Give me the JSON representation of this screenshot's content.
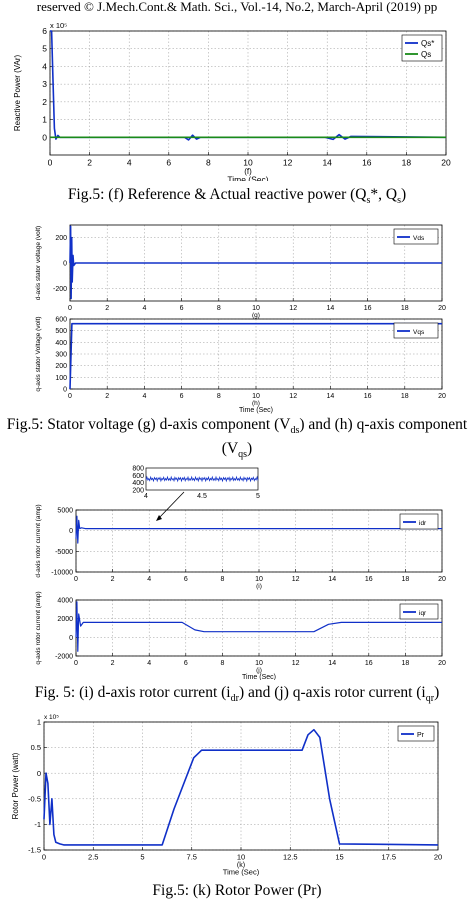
{
  "header": {
    "text": "reserved © J.Mech.Cont.& Math. Sci., Vol.-14, No.2, March-April (2019) pp"
  },
  "captions": {
    "f": {
      "pre": "Fig.5: (f) Reference & Actual reactive power (Q",
      "s1": "s",
      "mid": "*, Q",
      "s2": "s",
      "post": ")"
    },
    "gh": {
      "pre": "Fig.5: Stator voltage (g) d-axis component (V",
      "s1": "ds",
      "mid": ") and (h) q-axis component (V",
      "s2": "qs",
      "post": ")"
    },
    "ij": {
      "pre": "Fig. 5: (i) d-axis rotor current (i",
      "s1": "dr",
      "mid": ") and (j) q-axis rotor current (i",
      "s2": "qr",
      "post": ")"
    },
    "k": {
      "text": "Fig.5: (k) Rotor Power (Pr)"
    }
  },
  "chart_data": [
    {
      "id": "f",
      "type": "line",
      "multiplier": "x 10⁵",
      "ylabel": "Reactive Power (VAr)",
      "xlabel": "Time (Sec)",
      "sublabel": "(f)",
      "xlim": [
        0,
        20
      ],
      "ylim": [
        -1,
        6
      ],
      "xticks": [
        0,
        2,
        4,
        6,
        8,
        10,
        12,
        14,
        16,
        18,
        20
      ],
      "yticks": [
        0,
        1,
        2,
        3,
        4,
        5,
        6
      ],
      "legend": "top-right",
      "series": [
        {
          "name": "Qs*",
          "color": "#1030c8",
          "x": [
            0,
            0.08,
            0.15,
            0.22,
            0.3,
            0.4,
            0.5,
            1,
            6.8,
            7.0,
            7.2,
            7.4,
            7.6,
            13.9,
            14.3,
            14.6,
            14.9,
            15.2,
            20
          ],
          "y": [
            6,
            6,
            3.2,
            0.5,
            -0.1,
            0.1,
            0,
            0,
            0,
            -0.15,
            0.12,
            -0.1,
            0,
            0,
            -0.12,
            0.15,
            -0.1,
            0.05,
            0
          ]
        },
        {
          "name": "Qs",
          "color": "#1a8a1a",
          "x": [
            0,
            0.3,
            0.5,
            20
          ],
          "y": [
            0,
            0,
            0,
            0
          ]
        }
      ]
    },
    {
      "id": "g",
      "type": "line",
      "ylabel": "d-axis stator voltage (volt)",
      "xlabel": "",
      "sublabel": "(g)",
      "xlim": [
        0,
        20
      ],
      "ylim": [
        -300,
        300
      ],
      "xticks": [
        0,
        2,
        4,
        6,
        8,
        10,
        12,
        14,
        16,
        18,
        20
      ],
      "yticks": [
        -200,
        0,
        200
      ],
      "legend": "top-right",
      "series": [
        {
          "name": "Vds",
          "color": "#1030c8",
          "x": [
            0,
            0.03,
            0.06,
            0.09,
            0.12,
            0.16,
            0.2,
            0.3,
            20
          ],
          "y": [
            0,
            290,
            -280,
            200,
            -150,
            60,
            -20,
            0,
            0
          ]
        }
      ]
    },
    {
      "id": "h",
      "type": "line",
      "ylabel": "q-axis stator Voltage (volt)",
      "xlabel": "Time (Sec)",
      "sublabel": "(h)",
      "xlim": [
        0,
        20
      ],
      "ylim": [
        0,
        600
      ],
      "xticks": [
        0,
        2,
        4,
        6,
        8,
        10,
        12,
        14,
        16,
        18,
        20
      ],
      "yticks": [
        0,
        100,
        200,
        300,
        400,
        500,
        600
      ],
      "legend": "top-right",
      "series": [
        {
          "name": "Vqs",
          "color": "#1030c8",
          "x": [
            0,
            0.1,
            0.2,
            20
          ],
          "y": [
            0,
            560,
            560,
            560
          ]
        }
      ]
    },
    {
      "id": "i",
      "type": "line",
      "ylabel": "d-axis rotor current (amp)",
      "xlabel": "",
      "sublabel": "(i)",
      "xlim": [
        0,
        20
      ],
      "ylim": [
        -10000,
        5000
      ],
      "xticks": [
        0,
        2,
        4,
        6,
        8,
        10,
        12,
        14,
        16,
        18,
        20
      ],
      "yticks": [
        -10000,
        -5000,
        0,
        5000
      ],
      "legend": "top-right",
      "series": [
        {
          "name": "idr",
          "color": "#1030c8",
          "x": [
            0,
            0.05,
            0.1,
            0.15,
            0.2,
            0.3,
            0.5,
            20
          ],
          "y": [
            -2000,
            3500,
            -3000,
            2500,
            500,
            700,
            500,
            500
          ]
        }
      ],
      "inset": {
        "xlim": [
          4,
          5
        ],
        "ylim": [
          200,
          800
        ],
        "xticks": [
          4,
          4.5,
          5
        ],
        "yticks": [
          200,
          400,
          600,
          800
        ],
        "level": 500
      }
    },
    {
      "id": "j",
      "type": "line",
      "ylabel": "q-axis rotor current (amp)",
      "xlabel": "Time (Sec)",
      "sublabel": "(j)",
      "xlim": [
        0,
        20
      ],
      "ylim": [
        -2000,
        4000
      ],
      "xticks": [
        0,
        2,
        4,
        6,
        8,
        10,
        12,
        14,
        16,
        18,
        20
      ],
      "yticks": [
        -2000,
        0,
        2000,
        4000
      ],
      "legend": "top-right",
      "series": [
        {
          "name": "iqr",
          "color": "#1030c8",
          "x": [
            0,
            0.05,
            0.1,
            0.15,
            0.25,
            0.4,
            5.8,
            6.5,
            7,
            13,
            13.8,
            14.5,
            20
          ],
          "y": [
            0,
            3800,
            -1500,
            2500,
            1200,
            1600,
            1600,
            800,
            600,
            600,
            1400,
            1600,
            1600
          ]
        }
      ]
    },
    {
      "id": "k",
      "type": "line",
      "multiplier": "x 10⁵",
      "ylabel": "Rotor Power (watt)",
      "xlabel": "Time (Sec)",
      "sublabel": "(k)",
      "xlim": [
        0,
        20
      ],
      "ylim": [
        -1.5,
        1
      ],
      "xticks": [
        0,
        2.5,
        5,
        7.5,
        10,
        12.5,
        15,
        17.5,
        20
      ],
      "yticks": [
        -1.5,
        -1,
        -0.5,
        0,
        0.5,
        1
      ],
      "legend": "top-right",
      "series": [
        {
          "name": "Pr",
          "color": "#1030c8",
          "x": [
            0,
            0.1,
            0.2,
            0.3,
            0.4,
            0.5,
            0.6,
            0.8,
            1,
            6,
            6.6,
            7.6,
            8,
            13.1,
            13.4,
            13.7,
            14,
            14.5,
            15,
            20
          ],
          "y": [
            -0.9,
            0,
            -0.2,
            -1,
            -0.5,
            -1.2,
            -1.35,
            -1.38,
            -1.4,
            -1.4,
            -0.7,
            0.3,
            0.45,
            0.45,
            0.75,
            0.85,
            0.7,
            -0.5,
            -1.38,
            -1.4
          ]
        }
      ]
    }
  ]
}
